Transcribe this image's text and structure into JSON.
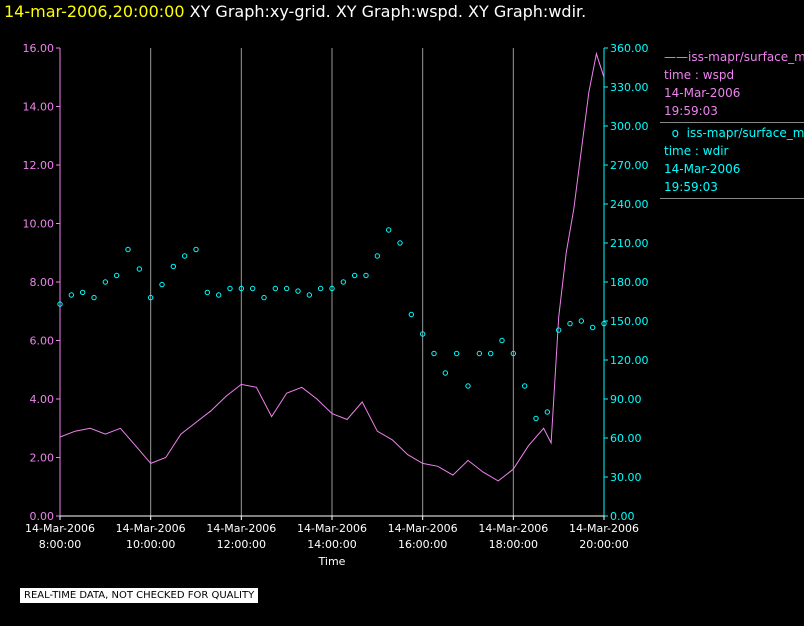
{
  "header": {
    "timestamp": "14-mar-2006,20:00:00",
    "titles": "XY Graph:xy-grid.  XY Graph:wspd.  XY Graph:wdir."
  },
  "legend": [
    {
      "label": "iss-mapr/surface_m",
      "var": "time : wspd",
      "date": "14-Mar-2006",
      "time": "19:59:03",
      "color": "#ee82ee"
    },
    {
      "label": "iss-mapr/surface_m",
      "var": "time : wdir",
      "date": "14-Mar-2006",
      "time": "19:59:03",
      "color": "#00ffff"
    }
  ],
  "footer": "REAL-TIME DATA, NOT CHECKED FOR QUALITY",
  "chart_data": {
    "type": "line",
    "xlabel": "Time",
    "xlim": [
      "2006-03-14 08:00",
      "2006-03-14 20:00"
    ],
    "xticks": [
      {
        "date": "14-Mar-2006",
        "time": "8:00:00"
      },
      {
        "date": "14-Mar-2006",
        "time": "10:00:00"
      },
      {
        "date": "14-Mar-2006",
        "time": "12:00:00"
      },
      {
        "date": "14-Mar-2006",
        "time": "14:00:00"
      },
      {
        "date": "14-Mar-2006",
        "time": "16:00:00"
      },
      {
        "date": "14-Mar-2006",
        "time": "18:00:00"
      },
      {
        "date": "14-Mar-2006",
        "time": "20:00:00"
      }
    ],
    "grid": "vertical",
    "left_axis": {
      "ylim": [
        0,
        16
      ],
      "ticks": [
        "0.00",
        "2.00",
        "4.00",
        "6.00",
        "8.00",
        "10.00",
        "12.00",
        "14.00",
        "16.00"
      ],
      "color": "#ee82ee"
    },
    "right_axis": {
      "ylim": [
        0,
        360
      ],
      "ticks": [
        "0.00",
        "30.00",
        "60.00",
        "90.00",
        "120.00",
        "150.00",
        "180.00",
        "210.00",
        "240.00",
        "270.00",
        "300.00",
        "330.00",
        "360.00"
      ],
      "color": "#00ffff"
    },
    "series": [
      {
        "name": "wspd",
        "axis": "left",
        "style": "line",
        "color": "#ee82ee",
        "x": [
          "08:00",
          "08:20",
          "08:40",
          "09:00",
          "09:20",
          "09:40",
          "10:00",
          "10:20",
          "10:40",
          "11:00",
          "11:20",
          "11:40",
          "12:00",
          "12:20",
          "12:40",
          "13:00",
          "13:20",
          "13:40",
          "14:00",
          "14:20",
          "14:40",
          "15:00",
          "15:20",
          "15:40",
          "16:00",
          "16:20",
          "16:40",
          "17:00",
          "17:20",
          "17:40",
          "18:00",
          "18:20",
          "18:40",
          "18:50",
          "19:00",
          "19:10",
          "19:20",
          "19:30",
          "19:40",
          "19:50",
          "20:00"
        ],
        "y": [
          2.7,
          2.9,
          3.0,
          2.8,
          3.0,
          2.4,
          1.8,
          2.0,
          2.8,
          3.2,
          3.6,
          4.1,
          4.5,
          4.4,
          3.4,
          4.2,
          4.4,
          4.0,
          3.5,
          3.3,
          3.9,
          2.9,
          2.6,
          2.1,
          1.8,
          1.7,
          1.4,
          1.9,
          1.5,
          1.2,
          1.6,
          2.4,
          3.0,
          2.5,
          6.8,
          9.0,
          10.5,
          12.5,
          14.5,
          15.8,
          15.0
        ]
      },
      {
        "name": "wdir",
        "axis": "right",
        "style": "scatter",
        "color": "#00ffff",
        "x": [
          "08:00",
          "08:15",
          "08:30",
          "08:45",
          "09:00",
          "09:15",
          "09:30",
          "09:45",
          "10:00",
          "10:15",
          "10:30",
          "10:45",
          "11:00",
          "11:15",
          "11:30",
          "11:45",
          "12:00",
          "12:15",
          "12:30",
          "12:45",
          "13:00",
          "13:15",
          "13:30",
          "13:45",
          "14:00",
          "14:15",
          "14:30",
          "14:45",
          "15:00",
          "15:15",
          "15:30",
          "15:45",
          "16:00",
          "16:15",
          "16:30",
          "16:45",
          "17:00",
          "17:15",
          "17:30",
          "17:45",
          "18:00",
          "18:15",
          "18:30",
          "18:45",
          "19:00",
          "19:15",
          "19:30",
          "19:45",
          "20:00"
        ],
        "y": [
          163,
          170,
          172,
          168,
          180,
          185,
          205,
          190,
          168,
          178,
          192,
          200,
          205,
          172,
          170,
          175,
          175,
          175,
          168,
          175,
          175,
          173,
          170,
          175,
          175,
          180,
          185,
          185,
          200,
          220,
          210,
          155,
          140,
          125,
          110,
          125,
          100,
          125,
          125,
          135,
          125,
          100,
          75,
          80,
          143,
          148,
          150,
          145,
          148
        ]
      }
    ]
  }
}
